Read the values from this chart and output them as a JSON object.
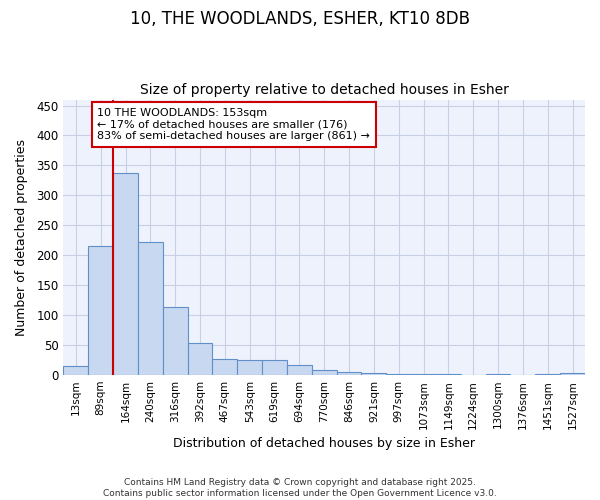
{
  "title_line1": "10, THE WOODLANDS, ESHER, KT10 8DB",
  "title_line2": "Size of property relative to detached houses in Esher",
  "xlabel": "Distribution of detached houses by size in Esher",
  "ylabel": "Number of detached properties",
  "categories": [
    "13sqm",
    "89sqm",
    "164sqm",
    "240sqm",
    "316sqm",
    "392sqm",
    "467sqm",
    "543sqm",
    "619sqm",
    "694sqm",
    "770sqm",
    "846sqm",
    "921sqm",
    "997sqm",
    "1073sqm",
    "1149sqm",
    "1224sqm",
    "1300sqm",
    "1376sqm",
    "1451sqm",
    "1527sqm"
  ],
  "values": [
    15,
    216,
    338,
    222,
    113,
    54,
    26,
    25,
    25,
    17,
    8,
    5,
    4,
    1,
    1,
    1,
    0,
    2,
    0,
    1,
    4
  ],
  "bar_color": "#c8d8f0",
  "bar_edge_color": "#6090c8",
  "red_line_index": 2,
  "annotation_text": "10 THE WOODLANDS: 153sqm\n← 17% of detached houses are smaller (176)\n83% of semi-detached houses are larger (861) →",
  "annotation_box_color": "#ffffff",
  "annotation_edge_color": "#cc0000",
  "ylim": [
    0,
    460
  ],
  "yticks": [
    0,
    50,
    100,
    150,
    200,
    250,
    300,
    350,
    400,
    450
  ],
  "background_color": "#eef2fc",
  "grid_color": "#c8d0e8",
  "title_fontsize": 12,
  "subtitle_fontsize": 10,
  "footer_text": "Contains HM Land Registry data © Crown copyright and database right 2025.\nContains public sector information licensed under the Open Government Licence v3.0."
}
